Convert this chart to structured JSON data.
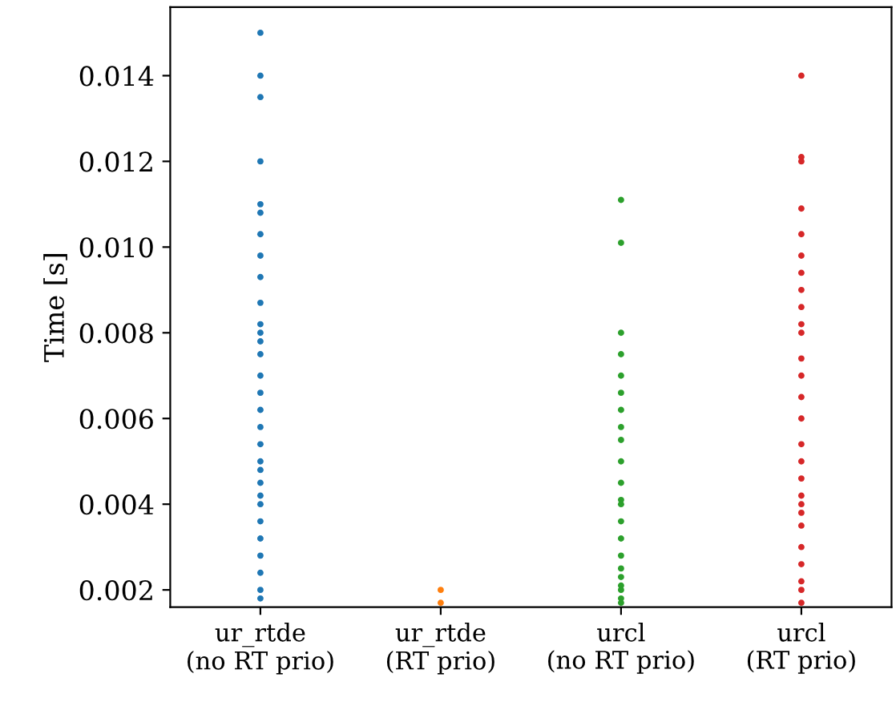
{
  "chart_data": {
    "type": "scatter",
    "ylabel": "Time [s]",
    "categories": [
      "ur_rtde\n(no RT prio)",
      "ur_rtde\n(RT prio)",
      "urcl\n(no RT prio)",
      "urcl\n(RT prio)"
    ],
    "ylim": [
      0.0016,
      0.0156
    ],
    "yticks": [
      0.002,
      0.004,
      0.006,
      0.008,
      {
        "value": 0.01,
        "label": "0.010"
      },
      0.012,
      0.014
    ],
    "grid": false,
    "legend": false,
    "marker": "circle",
    "series": [
      {
        "color": "#1f77b4",
        "x": [
          "ur_rtde\n(no RT prio)",
          "ur_rtde\n(no RT prio)",
          "ur_rtde\n(no RT prio)",
          "ur_rtde\n(no RT prio)",
          "ur_rtde\n(no RT prio)",
          "ur_rtde\n(no RT prio)",
          "ur_rtde\n(no RT prio)",
          "ur_rtde\n(no RT prio)",
          "ur_rtde\n(no RT prio)",
          "ur_rtde\n(no RT prio)",
          "ur_rtde\n(no RT prio)",
          "ur_rtde\n(no RT prio)",
          "ur_rtde\n(no RT prio)",
          "ur_rtde\n(no RT prio)",
          "ur_rtde\n(no RT prio)",
          "ur_rtde\n(no RT prio)",
          "ur_rtde\n(no RT prio)",
          "ur_rtde\n(no RT prio)",
          "ur_rtde\n(no RT prio)",
          "ur_rtde\n(no RT prio)",
          "ur_rtde\n(no RT prio)",
          "ur_rtde\n(no RT prio)",
          "ur_rtde\n(no RT prio)",
          "ur_rtde\n(no RT prio)",
          "ur_rtde\n(no RT prio)",
          "ur_rtde\n(no RT prio)",
          "ur_rtde\n(no RT prio)",
          "ur_rtde\n(no RT prio)",
          "ur_rtde\n(no RT prio)",
          "ur_rtde\n(no RT prio)"
        ],
        "values": [
          0.015,
          0.014,
          0.0135,
          0.012,
          0.011,
          0.0108,
          0.0103,
          0.0098,
          0.0093,
          0.0087,
          0.0082,
          0.008,
          0.0078,
          0.0075,
          0.007,
          0.0066,
          0.0062,
          0.0058,
          0.0054,
          0.005,
          0.0048,
          0.0045,
          0.0042,
          0.004,
          0.0036,
          0.0032,
          0.0028,
          0.0024,
          0.002,
          0.0018
        ]
      },
      {
        "color": "#ff7f0e",
        "x": [
          "ur_rtde\n(RT prio)",
          "ur_rtde\n(RT prio)"
        ],
        "values": [
          0.002,
          0.0017
        ]
      },
      {
        "color": "#2ca02c",
        "x": [
          "urcl\n(no RT prio)",
          "urcl\n(no RT prio)",
          "urcl\n(no RT prio)",
          "urcl\n(no RT prio)",
          "urcl\n(no RT prio)",
          "urcl\n(no RT prio)",
          "urcl\n(no RT prio)",
          "urcl\n(no RT prio)",
          "urcl\n(no RT prio)",
          "urcl\n(no RT prio)",
          "urcl\n(no RT prio)",
          "urcl\n(no RT prio)",
          "urcl\n(no RT prio)",
          "urcl\n(no RT prio)",
          "urcl\n(no RT prio)",
          "urcl\n(no RT prio)",
          "urcl\n(no RT prio)",
          "urcl\n(no RT prio)",
          "urcl\n(no RT prio)",
          "urcl\n(no RT prio)",
          "urcl\n(no RT prio)",
          "urcl\n(no RT prio)"
        ],
        "values": [
          0.0111,
          0.0101,
          0.008,
          0.0075,
          0.007,
          0.0066,
          0.0062,
          0.0058,
          0.0055,
          0.005,
          0.0045,
          0.0041,
          0.004,
          0.0036,
          0.0032,
          0.0028,
          0.0025,
          0.0023,
          0.0021,
          0.002,
          0.0018,
          0.0017
        ]
      },
      {
        "color": "#d62728",
        "x": [
          "urcl\n(RT prio)",
          "urcl\n(RT prio)",
          "urcl\n(RT prio)",
          "urcl\n(RT prio)",
          "urcl\n(RT prio)",
          "urcl\n(RT prio)",
          "urcl\n(RT prio)",
          "urcl\n(RT prio)",
          "urcl\n(RT prio)",
          "urcl\n(RT prio)",
          "urcl\n(RT prio)",
          "urcl\n(RT prio)",
          "urcl\n(RT prio)",
          "urcl\n(RT prio)",
          "urcl\n(RT prio)",
          "urcl\n(RT prio)",
          "urcl\n(RT prio)",
          "urcl\n(RT prio)",
          "urcl\n(RT prio)",
          "urcl\n(RT prio)",
          "urcl\n(RT prio)",
          "urcl\n(RT prio)",
          "urcl\n(RT prio)",
          "urcl\n(RT prio)",
          "urcl\n(RT prio)",
          "urcl\n(RT prio)",
          "urcl\n(RT prio)"
        ],
        "values": [
          0.014,
          0.0121,
          0.012,
          0.0109,
          0.0103,
          0.0098,
          0.0094,
          0.009,
          0.0086,
          0.0082,
          0.008,
          0.0074,
          0.007,
          0.0065,
          0.006,
          0.0054,
          0.005,
          0.0046,
          0.0042,
          0.004,
          0.0038,
          0.0035,
          0.003,
          0.0026,
          0.0022,
          0.002,
          0.0017
        ]
      }
    ]
  }
}
